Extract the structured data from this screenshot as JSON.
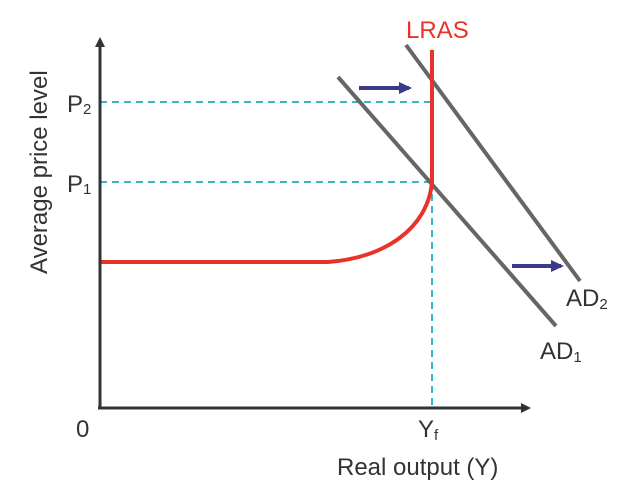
{
  "diagram": {
    "y_axis_label": "Average price level",
    "x_axis_label": "Real output (Y)",
    "origin_label": "0",
    "price_levels": [
      {
        "letter": "P",
        "subscript": "2"
      },
      {
        "letter": "P",
        "subscript": "1"
      }
    ],
    "full_employment_output": {
      "letter": "Y",
      "subscript": "f"
    },
    "curves": {
      "lras": {
        "label": "LRAS",
        "color": "#e8332a"
      },
      "ad1": {
        "letter": "AD",
        "subscript": "1",
        "color": "#666666"
      },
      "ad2": {
        "letter": "AD",
        "subscript": "2",
        "color": "#666666"
      }
    },
    "colors": {
      "axis": "#333333",
      "guide_lines": "#3bb3c9",
      "shift_arrows": "#3b3a8a"
    }
  }
}
